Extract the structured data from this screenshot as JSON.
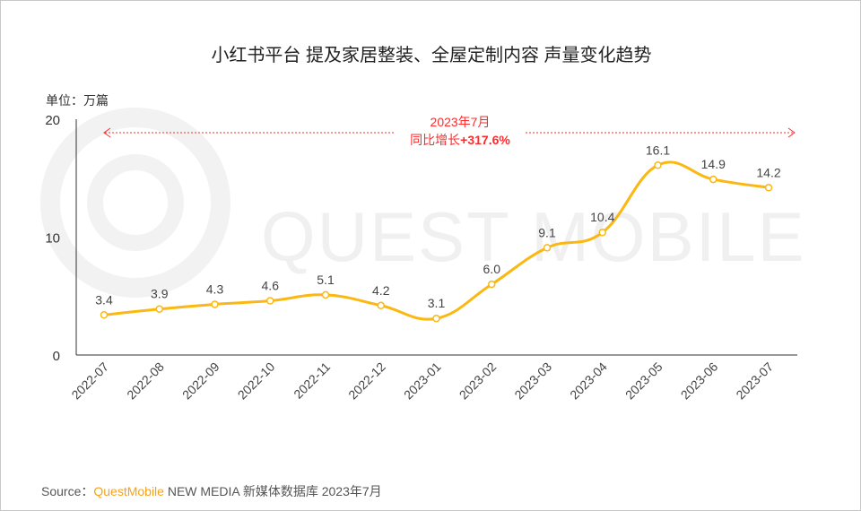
{
  "chart_data": {
    "type": "line",
    "title": "小红书平台 提及家居整装、全屋定制内容 声量变化趋势",
    "unit_label": "单位：万篇",
    "categories": [
      "2022-07",
      "2022-08",
      "2022-09",
      "2022-10",
      "2022-11",
      "2022-12",
      "2023-01",
      "2023-02",
      "2023-03",
      "2023-04",
      "2023-05",
      "2023-06",
      "2023-07"
    ],
    "values": [
      3.4,
      3.9,
      4.3,
      4.6,
      5.1,
      4.2,
      3.1,
      6.0,
      9.1,
      10.4,
      16.1,
      14.9,
      14.2
    ],
    "ylim": [
      0,
      20
    ],
    "yticks": [
      0,
      10,
      20
    ],
    "grid": false,
    "line_color": "#fbb812",
    "annotation": {
      "line1": "2023年7月",
      "line2_prefix": "同比增长",
      "line2_value": "+317.6%",
      "color": "#ff2a2a"
    },
    "watermark": "QUEST MOBILE"
  },
  "source": {
    "label": "Source：",
    "brand": "QuestMobile",
    "rest": " NEW MEDIA 新媒体数据库 2023年7月"
  }
}
